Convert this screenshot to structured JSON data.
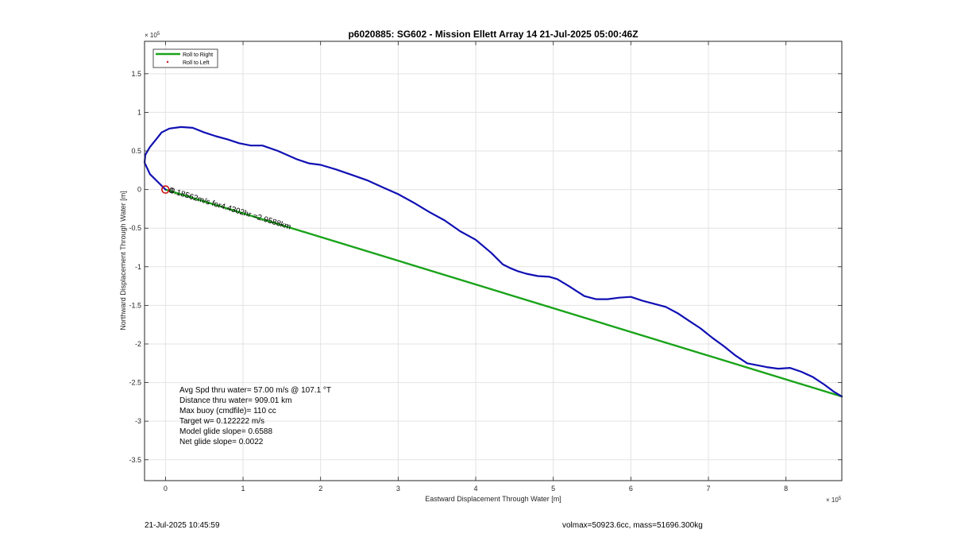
{
  "chart_data": {
    "type": "line",
    "title": "p6020885: SG602 - Mission Ellett Array 14 21-Jul-2025 05:00:46Z",
    "xlabel": "Eastward Displacement Through Water [m]",
    "ylabel": "Northward Displacement Through Water [m]",
    "x_exponent_label": "× 10",
    "x_exponent_power": "5",
    "y_exponent_label": "× 10",
    "y_exponent_power": "5",
    "xlim": [
      -0.27,
      8.72
    ],
    "ylim": [
      -3.77,
      1.92
    ],
    "scale_note": "axis values in units of 1e5 m",
    "grid": true,
    "legend_position": "top-left",
    "xticks": [
      0,
      1,
      2,
      3,
      4,
      5,
      6,
      7,
      8
    ],
    "xtick_labels": [
      "0",
      "1",
      "2",
      "3",
      "4",
      "5",
      "6",
      "7",
      "8"
    ],
    "yticks": [
      1.5,
      1,
      0.5,
      0,
      -0.5,
      -1,
      -1.5,
      -2,
      -2.5,
      -3,
      -3.5
    ],
    "ytick_labels": [
      "1.5",
      "1",
      "0.5",
      "0",
      "-0.5",
      "-1",
      "-1.5",
      "-2",
      "-2.5",
      "-3",
      "-3.5"
    ],
    "series": [
      {
        "name": "Roll to Right",
        "color": "#1aa31a",
        "style": "line",
        "x": [
          0,
          8.72
        ],
        "y": [
          0,
          -2.68
        ]
      },
      {
        "name": "",
        "color": "#1010b4",
        "style": "line",
        "x": [
          0,
          -0.1,
          -0.2,
          -0.27,
          -0.26,
          -0.2,
          -0.12,
          -0.05,
          0.05,
          0.2,
          0.35,
          0.5,
          0.65,
          0.8,
          0.95,
          1.1,
          1.25,
          1.45,
          1.7,
          1.85,
          2.0,
          2.2,
          2.4,
          2.6,
          2.8,
          3.0,
          3.2,
          3.4,
          3.6,
          3.8,
          4.0,
          4.2,
          4.35,
          4.45,
          4.5,
          4.55,
          4.65,
          4.8,
          4.95,
          5.05,
          5.2,
          5.4,
          5.55,
          5.7,
          5.85,
          6.0,
          6.15,
          6.3,
          6.45,
          6.6,
          6.75,
          6.9,
          7.05,
          7.2,
          7.35,
          7.5,
          7.6,
          7.75,
          7.9,
          8.05,
          8.2,
          8.35,
          8.5,
          8.62,
          8.72
        ],
        "y": [
          0,
          0.1,
          0.2,
          0.35,
          0.45,
          0.55,
          0.65,
          0.74,
          0.79,
          0.81,
          0.8,
          0.74,
          0.69,
          0.65,
          0.6,
          0.57,
          0.57,
          0.5,
          0.39,
          0.34,
          0.32,
          0.26,
          0.19,
          0.12,
          0.03,
          -0.06,
          -0.17,
          -0.29,
          -0.4,
          -0.54,
          -0.65,
          -0.82,
          -0.97,
          -1.02,
          -1.04,
          -1.06,
          -1.09,
          -1.12,
          -1.13,
          -1.16,
          -1.25,
          -1.38,
          -1.42,
          -1.42,
          -1.4,
          -1.39,
          -1.44,
          -1.48,
          -1.52,
          -1.6,
          -1.7,
          -1.8,
          -1.92,
          -2.03,
          -2.15,
          -2.25,
          -2.27,
          -2.3,
          -2.32,
          -2.31,
          -2.36,
          -2.43,
          -2.53,
          -2.62,
          -2.68
        ]
      },
      {
        "name": "Roll to Left",
        "color": "#c81414",
        "style": "marker",
        "x": [],
        "y": []
      }
    ],
    "start_marker": {
      "x": 0,
      "y": 0,
      "color": "#c81414"
    },
    "annotation": {
      "text": "0.18562m/s for4.4302hr =2.9588km",
      "prefix": "0",
      "prefix_color": "#000000"
    },
    "stats_box": [
      "Avg Spd thru water= 57.00 m/s @ 107.1 °T",
      "Distance thru water= 909.01 km",
      "Max buoy (cmdfile)= 110 cc",
      "Target w= 0.122222 m/s",
      "Model glide slope= 0.6588",
      "Net glide slope= 0.0022"
    ]
  },
  "footer": {
    "timestamp": "21-Jul-2025 10:45:59",
    "volmax_mass": "volmax=50923.6cc, mass=51696.300kg"
  }
}
